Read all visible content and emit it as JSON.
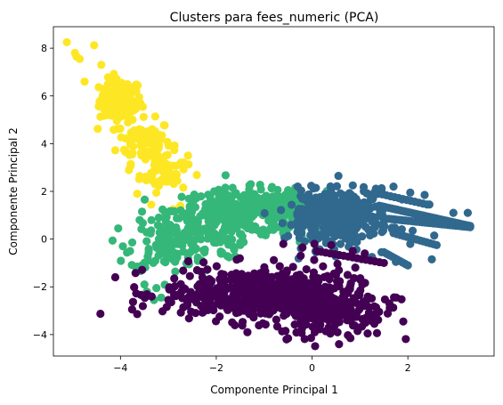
{
  "chart_data": {
    "type": "scatter",
    "title": "Clusters para fees_numeric (PCA)",
    "xlabel": "Componente Principal 1",
    "ylabel": "Componente Principal 2",
    "xlim": [
      -5.4,
      3.8
    ],
    "ylim": [
      -4.9,
      8.9
    ],
    "xticks": [
      -4,
      -2,
      0,
      2
    ],
    "xtick_labels": [
      "−4",
      "−2",
      "0",
      "2"
    ],
    "yticks": [
      -4,
      -2,
      0,
      2,
      4,
      6,
      8
    ],
    "ytick_labels": [
      "−4",
      "−2",
      "0",
      "2",
      "4",
      "6",
      "8"
    ],
    "grid": false,
    "legend": false,
    "series": [
      {
        "color": "#fde725",
        "clusters": [
          {
            "cx": -4.0,
            "cy": 5.8,
            "sx": 0.22,
            "sy": 0.45,
            "n": 120
          },
          {
            "cx": -3.5,
            "cy": 4.1,
            "sx": 0.28,
            "sy": 0.45,
            "n": 90
          },
          {
            "cx": -3.1,
            "cy": 2.8,
            "sx": 0.25,
            "sy": 0.4,
            "n": 60
          }
        ],
        "points": [
          [
            -5.12,
            8.25
          ],
          [
            -4.55,
            8.12
          ],
          [
            -4.95,
            7.8
          ],
          [
            -4.92,
            7.65
          ],
          [
            -4.85,
            7.55
          ],
          [
            -4.4,
            7.3
          ],
          [
            -4.2,
            6.6
          ],
          [
            -4.75,
            6.6
          ],
          [
            -3.65,
            1.9
          ],
          [
            -2.9,
            1.25
          ],
          [
            -2.75,
            1.4
          ],
          [
            -3.0,
            2.7
          ],
          [
            -2.85,
            2.5
          ]
        ]
      },
      {
        "color": "#35b779",
        "clusters": [
          {
            "cx": -1.5,
            "cy": 1.2,
            "sx": 0.7,
            "sy": 0.45,
            "n": 260
          },
          {
            "cx": -0.5,
            "cy": 1.0,
            "sx": 0.4,
            "sy": 0.5,
            "n": 120
          },
          {
            "cx": -3.0,
            "cy": -0.2,
            "sx": 0.4,
            "sy": 0.6,
            "n": 110
          },
          {
            "cx": -2.2,
            "cy": 0.2,
            "sx": 0.4,
            "sy": 0.5,
            "n": 70
          }
        ],
        "points": [
          [
            -3.3,
            -2.55
          ],
          [
            -3.15,
            -2.45
          ],
          [
            -3.45,
            -2.2
          ],
          [
            -3.25,
            -2.05
          ],
          [
            -3.5,
            -1.9
          ],
          [
            -3.55,
            -1.1
          ],
          [
            -3.65,
            -1.15
          ],
          [
            -3.8,
            -0.5
          ],
          [
            -3.95,
            -0.3
          ],
          [
            -3.55,
            1.15
          ],
          [
            -3.2,
            0.9
          ],
          [
            -2.45,
            -0.45
          ],
          [
            -2.2,
            -1.3
          ],
          [
            -1.0,
            1.6
          ],
          [
            -0.5,
            2.05
          ],
          [
            -0.35,
            2.15
          ],
          [
            -2.0,
            -0.15
          ],
          [
            -1.5,
            -0.25
          ],
          [
            -2.3,
            -0.9
          ],
          [
            -3.6,
            0.8
          ]
        ]
      },
      {
        "color": "#31688e",
        "clusters": [
          {
            "cx": 0.7,
            "cy": 1.0,
            "sx": 0.45,
            "sy": 0.55,
            "n": 280
          },
          {
            "cx": 0.1,
            "cy": 0.8,
            "sx": 0.3,
            "sy": 0.55,
            "n": 90
          }
        ],
        "points": [
          [
            0.55,
            2.65
          ],
          [
            -0.3,
            2.2
          ],
          [
            0.85,
            2.25
          ],
          [
            1.7,
            2.2
          ],
          [
            1.45,
            2.05
          ],
          [
            2.05,
            1.95
          ],
          [
            2.35,
            1.85
          ],
          [
            2.45,
            1.45
          ],
          [
            2.95,
            1.1
          ],
          [
            3.25,
            1.1
          ],
          [
            3.3,
            0.55
          ],
          [
            2.6,
            0.8
          ],
          [
            2.1,
            0.35
          ],
          [
            1.45,
            -0.55
          ],
          [
            1.75,
            -0.95
          ],
          [
            2.5,
            -0.85
          ],
          [
            1.85,
            0.2
          ],
          [
            2.55,
            0.15
          ],
          [
            2.05,
            -0.2
          ],
          [
            1.25,
            -0.75
          ]
        ],
        "streaks": [
          {
            "from": [
              1.4,
              1.4
            ],
            "to": [
              3.3,
              0.55
            ],
            "n": 36
          },
          {
            "from": [
              1.6,
              0.85
            ],
            "to": [
              3.3,
              0.5
            ],
            "n": 30
          },
          {
            "from": [
              1.7,
              0.25
            ],
            "to": [
              2.6,
              -0.25
            ],
            "n": 14
          },
          {
            "from": [
              1.5,
              -0.55
            ],
            "to": [
              2.0,
              -1.1
            ],
            "n": 10
          },
          {
            "from": [
              1.3,
              1.95
            ],
            "to": [
              2.4,
              1.45
            ],
            "n": 14
          }
        ]
      },
      {
        "color": "#440154",
        "clusters": [
          {
            "cx": -1.1,
            "cy": -2.3,
            "sx": 1.0,
            "sy": 0.55,
            "n": 520
          },
          {
            "cx": 0.4,
            "cy": -3.0,
            "sx": 0.55,
            "sy": 0.55,
            "n": 180
          }
        ],
        "points": [
          [
            -3.0,
            -2.55
          ],
          [
            -2.85,
            -2.35
          ],
          [
            -2.65,
            -2.1
          ],
          [
            -2.55,
            -1.55
          ],
          [
            -2.4,
            -1.3
          ],
          [
            0.8,
            -4.15
          ],
          [
            0.95,
            -3.85
          ],
          [
            1.05,
            -3.35
          ],
          [
            1.3,
            -3.55
          ],
          [
            1.4,
            -3.05
          ],
          [
            0.05,
            -0.2
          ],
          [
            0.4,
            -0.25
          ],
          [
            0.85,
            -0.5
          ],
          [
            1.1,
            -0.6
          ],
          [
            -0.6,
            -0.2
          ],
          [
            -0.2,
            -0.35
          ],
          [
            -1.35,
            -3.9
          ],
          [
            0.5,
            -1.5
          ],
          [
            1.05,
            -1.9
          ]
        ],
        "streaks": [
          {
            "from": [
              0.1,
              -0.5
            ],
            "to": [
              1.5,
              -1.0
            ],
            "n": 16
          }
        ]
      }
    ]
  }
}
